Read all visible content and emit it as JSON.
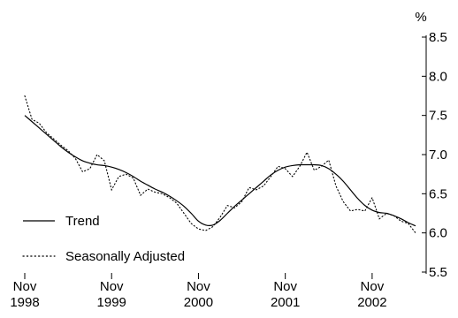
{
  "chart_data": {
    "type": "line",
    "unit": "%",
    "x_tick_labels": [
      {
        "month": "Nov",
        "year": "1998",
        "index": 0
      },
      {
        "month": "Nov",
        "year": "1999",
        "index": 12
      },
      {
        "month": "Nov",
        "year": "2000",
        "index": 24
      },
      {
        "month": "Nov",
        "year": "2001",
        "index": 36
      },
      {
        "month": "Nov",
        "year": "2002",
        "index": 48
      }
    ],
    "y_ticks": [
      "5.5",
      "6.0",
      "6.5",
      "7.0",
      "7.5",
      "8.0",
      "8.5"
    ],
    "ylim": [
      5.5,
      8.5
    ],
    "y_axis_side": "right",
    "legend_position": "bottom-left",
    "series": [
      {
        "name": "Trend",
        "style": "solid",
        "values": [
          7.5,
          7.42,
          7.34,
          7.26,
          7.18,
          7.1,
          7.03,
          6.97,
          6.92,
          6.89,
          6.87,
          6.86,
          6.84,
          6.81,
          6.77,
          6.72,
          6.66,
          6.61,
          6.56,
          6.52,
          6.47,
          6.41,
          6.34,
          6.25,
          6.15,
          6.1,
          6.1,
          6.16,
          6.25,
          6.34,
          6.42,
          6.5,
          6.58,
          6.66,
          6.74,
          6.8,
          6.84,
          6.86,
          6.87,
          6.87,
          6.87,
          6.86,
          6.82,
          6.75,
          6.66,
          6.55,
          6.44,
          6.35,
          6.29,
          6.26,
          6.25,
          6.22,
          6.18,
          6.13,
          6.09
        ]
      },
      {
        "name": "Seasonally Adjusted",
        "style": "dotted",
        "values": [
          7.75,
          7.45,
          7.4,
          7.28,
          7.2,
          7.12,
          7.05,
          6.95,
          6.78,
          6.82,
          7.0,
          6.92,
          6.55,
          6.72,
          6.75,
          6.7,
          6.48,
          6.56,
          6.52,
          6.5,
          6.45,
          6.38,
          6.25,
          6.12,
          6.05,
          6.03,
          6.08,
          6.2,
          6.35,
          6.32,
          6.4,
          6.58,
          6.55,
          6.6,
          6.72,
          6.85,
          6.82,
          6.72,
          6.85,
          7.03,
          6.8,
          6.85,
          6.93,
          6.6,
          6.4,
          6.28,
          6.3,
          6.28,
          6.45,
          6.18,
          6.25,
          6.22,
          6.15,
          6.12,
          6.0
        ]
      }
    ]
  }
}
